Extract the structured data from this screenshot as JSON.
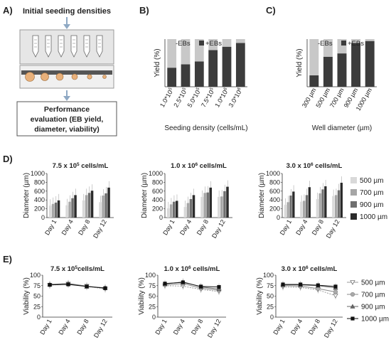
{
  "panel_labels": {
    "A": "A)",
    "B": "B)",
    "C": "C)",
    "D": "D)",
    "E": "E)"
  },
  "panelA": {
    "title": "Initial seeding densities",
    "box_lines": [
      "Performance",
      "evaluation (EB yield,",
      "diameter, viability)"
    ]
  },
  "colors": {
    "minusEB": "#c8c8c8",
    "plusEB": "#3c3c3c",
    "d500": "#d9d9d9",
    "d700": "#a6a6a6",
    "d900": "#6f6f6f",
    "d1000": "#2b2b2b",
    "arrow": "#8fa9c4"
  },
  "chart_data": [
    {
      "id": "B",
      "type": "bar",
      "stacked": true,
      "categories": [
        "1.0*10^5",
        "2.5*10^5",
        "5.0*10^5",
        "7.5*10^5",
        "1.0*10^6",
        "3.0*10^6"
      ],
      "series": [
        {
          "name": "+EBs",
          "values": [
            40,
            47,
            53,
            77,
            84,
            92
          ]
        },
        {
          "name": "-EBs",
          "values": [
            60,
            53,
            47,
            23,
            16,
            8
          ]
        }
      ],
      "xlabel": "Seeding density (cells/mL)",
      "ylabel": "Yield (%)",
      "ylim": [
        0,
        100
      ],
      "legend": [
        "-EBs",
        "+EBs"
      ],
      "legend_position": "top"
    },
    {
      "id": "C",
      "type": "bar",
      "stacked": true,
      "categories": [
        "300 µm",
        "500 µm",
        "700 µm",
        "900 µm",
        "1000 µm"
      ],
      "series": [
        {
          "name": "+EBs",
          "values": [
            24,
            63,
            70,
            92,
            96
          ]
        },
        {
          "name": "-EBs",
          "values": [
            76,
            37,
            30,
            8,
            4
          ]
        }
      ],
      "xlabel": "Well diameter (µm)",
      "ylabel": "Yield (%)",
      "ylim": [
        0,
        100
      ],
      "legend": [
        "-EBs",
        "+EBs"
      ],
      "legend_position": "top"
    },
    {
      "id": "D1",
      "type": "bar",
      "title": "7.5 x 10",
      "title_exp": "5",
      "title_unit": " cells/mL",
      "categories": [
        "Day 1",
        "Day 4",
        "Day 8",
        "Day 12"
      ],
      "series": [
        {
          "name": "500 µm",
          "values": [
            270,
            280,
            390,
            350
          ]
        },
        {
          "name": "700 µm",
          "values": [
            310,
            360,
            510,
            500
          ]
        },
        {
          "name": "900 µm",
          "values": [
            340,
            440,
            560,
            550
          ]
        },
        {
          "name": "1000 µm",
          "values": [
            390,
            510,
            610,
            680
          ]
        }
      ],
      "ylabel": "Diameter (µm)",
      "ylim": [
        0,
        1000
      ],
      "yticks": [
        0,
        200,
        400,
        600,
        800,
        1000
      ]
    },
    {
      "id": "D2",
      "type": "bar",
      "title": "1.0 x 10",
      "title_exp": "6",
      "title_unit": " cells/mL",
      "categories": [
        "Day 1",
        "Day 4",
        "Day 8",
        "Day 12"
      ],
      "series": [
        {
          "name": "500 µm",
          "values": [
            210,
            240,
            470,
            470
          ]
        },
        {
          "name": "700 µm",
          "values": [
            300,
            330,
            560,
            480
          ]
        },
        {
          "name": "900 µm",
          "values": [
            360,
            420,
            570,
            600
          ]
        },
        {
          "name": "1000 µm",
          "values": [
            380,
            510,
            680,
            700
          ]
        }
      ],
      "ylabel": "Diameter (µm)",
      "ylim": [
        0,
        1000
      ],
      "yticks": [
        0,
        200,
        400,
        600,
        800,
        1000
      ]
    },
    {
      "id": "D3",
      "type": "bar",
      "title": "3.0 x 10",
      "title_exp": "6",
      "title_unit": " cells/mL",
      "categories": [
        "Day 1",
        "Day 4",
        "Day 8",
        "Day 12"
      ],
      "series": [
        {
          "name": "500 µm",
          "values": [
            290,
            360,
            420,
            490
          ]
        },
        {
          "name": "700 µm",
          "values": [
            350,
            380,
            550,
            510
          ]
        },
        {
          "name": "900 µm",
          "values": [
            500,
            510,
            640,
            620
          ]
        },
        {
          "name": "1000 µm",
          "values": [
            590,
            690,
            710,
            790
          ]
        }
      ],
      "ylabel": "Diameter (µm)",
      "ylim": [
        0,
        1000
      ],
      "yticks": [
        0,
        200,
        400,
        600,
        800,
        1000
      ],
      "legend": [
        "500 µm",
        "700 µm",
        "900 µm",
        "1000 µm"
      ],
      "legend_position": "right"
    },
    {
      "id": "E1",
      "type": "line",
      "title": "7.5 x 10",
      "title_exp": "5",
      "title_unit": "cells/mL",
      "categories": [
        "Day 1",
        "Day 4",
        "Day 8",
        "Day 12"
      ],
      "series": [
        {
          "name": "500 µm",
          "values": [
            76,
            79,
            74,
            67
          ]
        },
        {
          "name": "700 µm",
          "values": [
            77,
            80,
            74,
            69
          ]
        },
        {
          "name": "900 µm",
          "values": [
            78,
            80,
            73,
            70
          ]
        },
        {
          "name": "1000 µm",
          "values": [
            77,
            78,
            73,
            69
          ]
        }
      ],
      "ylabel": "Viability (%)",
      "ylim": [
        0,
        100
      ],
      "yticks": [
        0,
        25,
        50,
        75,
        100
      ]
    },
    {
      "id": "E2",
      "type": "line",
      "title": "1.0 x 10",
      "title_exp": "6",
      "title_unit": " cells/mL",
      "categories": [
        "Day 1",
        "Day 4",
        "Day 8",
        "Day 12"
      ],
      "series": [
        {
          "name": "500 µm",
          "values": [
            75,
            74,
            66,
            61
          ]
        },
        {
          "name": "700 µm",
          "values": [
            77,
            80,
            69,
            64
          ]
        },
        {
          "name": "900 µm",
          "values": [
            79,
            84,
            72,
            67
          ]
        },
        {
          "name": "1000 µm",
          "values": [
            80,
            83,
            73,
            72
          ]
        }
      ],
      "ylabel": "Viability (%)",
      "ylim": [
        0,
        100
      ],
      "yticks": [
        0,
        25,
        50,
        75,
        100
      ]
    },
    {
      "id": "E3",
      "type": "line",
      "title": "3.0 x 10",
      "title_exp": "6",
      "title_unit": " cells/mL",
      "categories": [
        "Day 1",
        "Day 4",
        "Day 8",
        "Day 12"
      ],
      "series": [
        {
          "name": "500 µm",
          "values": [
            72,
            71,
            65,
            51
          ]
        },
        {
          "name": "700 µm",
          "values": [
            75,
            74,
            68,
            60
          ]
        },
        {
          "name": "900 µm",
          "values": [
            77,
            77,
            75,
            70
          ]
        },
        {
          "name": "1000 µm",
          "values": [
            78,
            78,
            76,
            73
          ]
        }
      ],
      "ylabel": "Viability (%)",
      "ylim": [
        0,
        100
      ],
      "yticks": [
        0,
        25,
        50,
        75,
        100
      ],
      "legend": [
        "500 µm",
        "700 µm",
        "900 µm",
        "1000 µm"
      ],
      "legend_position": "right"
    }
  ]
}
